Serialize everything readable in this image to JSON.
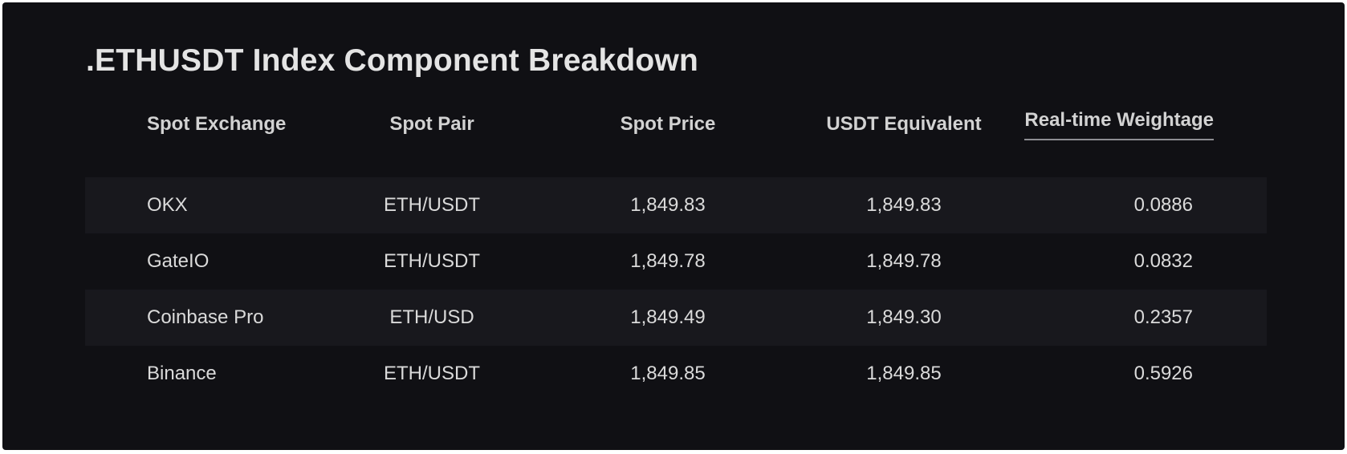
{
  "page": {
    "title": ".ETHUSDT Index Component Breakdown"
  },
  "table": {
    "columns": [
      {
        "label": "Spot Exchange"
      },
      {
        "label": "Spot Pair"
      },
      {
        "label": "Spot Price"
      },
      {
        "label": "USDT Equivalent"
      },
      {
        "label": "Real-time Weightage",
        "underlined": true
      }
    ],
    "rows": [
      {
        "exchange": "OKX",
        "pair": "ETH/USDT",
        "price": "1,849.83",
        "usdt_equivalent": "1,849.83",
        "weightage": "0.0886"
      },
      {
        "exchange": "GateIO",
        "pair": "ETH/USDT",
        "price": "1,849.78",
        "usdt_equivalent": "1,849.78",
        "weightage": "0.0832"
      },
      {
        "exchange": "Coinbase Pro",
        "pair": "ETH/USD",
        "price": "1,849.49",
        "usdt_equivalent": "1,849.30",
        "weightage": "0.2357"
      },
      {
        "exchange": "Binance",
        "pair": "ETH/USDT",
        "price": "1,849.85",
        "usdt_equivalent": "1,849.85",
        "weightage": "0.5926"
      }
    ]
  },
  "colors": {
    "panel-bg": "#101014",
    "stripe-bg": "#18181d",
    "title-color": "#e4e4e4",
    "header-color": "#d2d2d2",
    "cell-color": "#dadada",
    "underline-color": "#8d8d92"
  }
}
